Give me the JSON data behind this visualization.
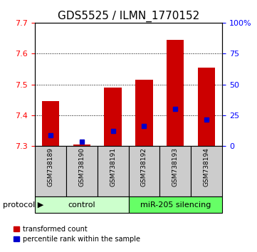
{
  "title": "GDS5525 / ILMN_1770152",
  "samples": [
    "GSM738189",
    "GSM738190",
    "GSM738191",
    "GSM738192",
    "GSM738193",
    "GSM738194"
  ],
  "bar_tops": [
    7.445,
    7.305,
    7.49,
    7.515,
    7.645,
    7.555
  ],
  "bar_bottom": 7.3,
  "blue_markers": [
    7.335,
    7.315,
    7.35,
    7.365,
    7.42,
    7.385
  ],
  "ylim_left": [
    7.3,
    7.7
  ],
  "ylim_right": [
    0,
    100
  ],
  "yticks_left": [
    7.3,
    7.4,
    7.5,
    7.6,
    7.7
  ],
  "yticks_right": [
    0,
    25,
    50,
    75,
    100
  ],
  "ytick_labels_right": [
    "0",
    "25",
    "50",
    "75",
    "100%"
  ],
  "bar_color": "#cc0000",
  "blue_color": "#0000cc",
  "bar_width": 0.55,
  "control_label": "control",
  "mirna_label": "miR-205 silencing",
  "control_bg": "#ccffcc",
  "mirna_bg": "#66ff66",
  "protocol_label": "protocol",
  "legend_red": "transformed count",
  "legend_blue": "percentile rank within the sample",
  "xlabel_bg": "#cccccc",
  "title_fontsize": 11,
  "tick_fontsize": 8,
  "label_fontsize": 8
}
